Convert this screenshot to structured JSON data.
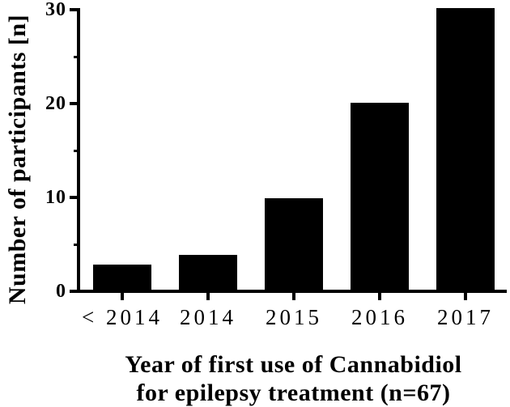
{
  "figure": {
    "background": "#ffffff",
    "ink_color": "#000000"
  },
  "chart_data": {
    "type": "bar",
    "categories": [
      "< 2014",
      "2014",
      "2015",
      "2016",
      "2017"
    ],
    "values": [
      3,
      4,
      10,
      20,
      30
    ],
    "xlabel_lines": [
      "Year of first use of Cannabidiol",
      "for epilepsy treatment (n=67)"
    ],
    "xlabel": "Year of first use of Cannabidiol for epilepsy treatment (n=67)",
    "ylabel": "Number of participants [n]",
    "ylim": [
      0,
      30
    ],
    "yticks_major": [
      0,
      10,
      20,
      30
    ],
    "yticks_minor": [
      5,
      15,
      25
    ],
    "bar_color": "#000000",
    "grid": false,
    "legend": false
  }
}
